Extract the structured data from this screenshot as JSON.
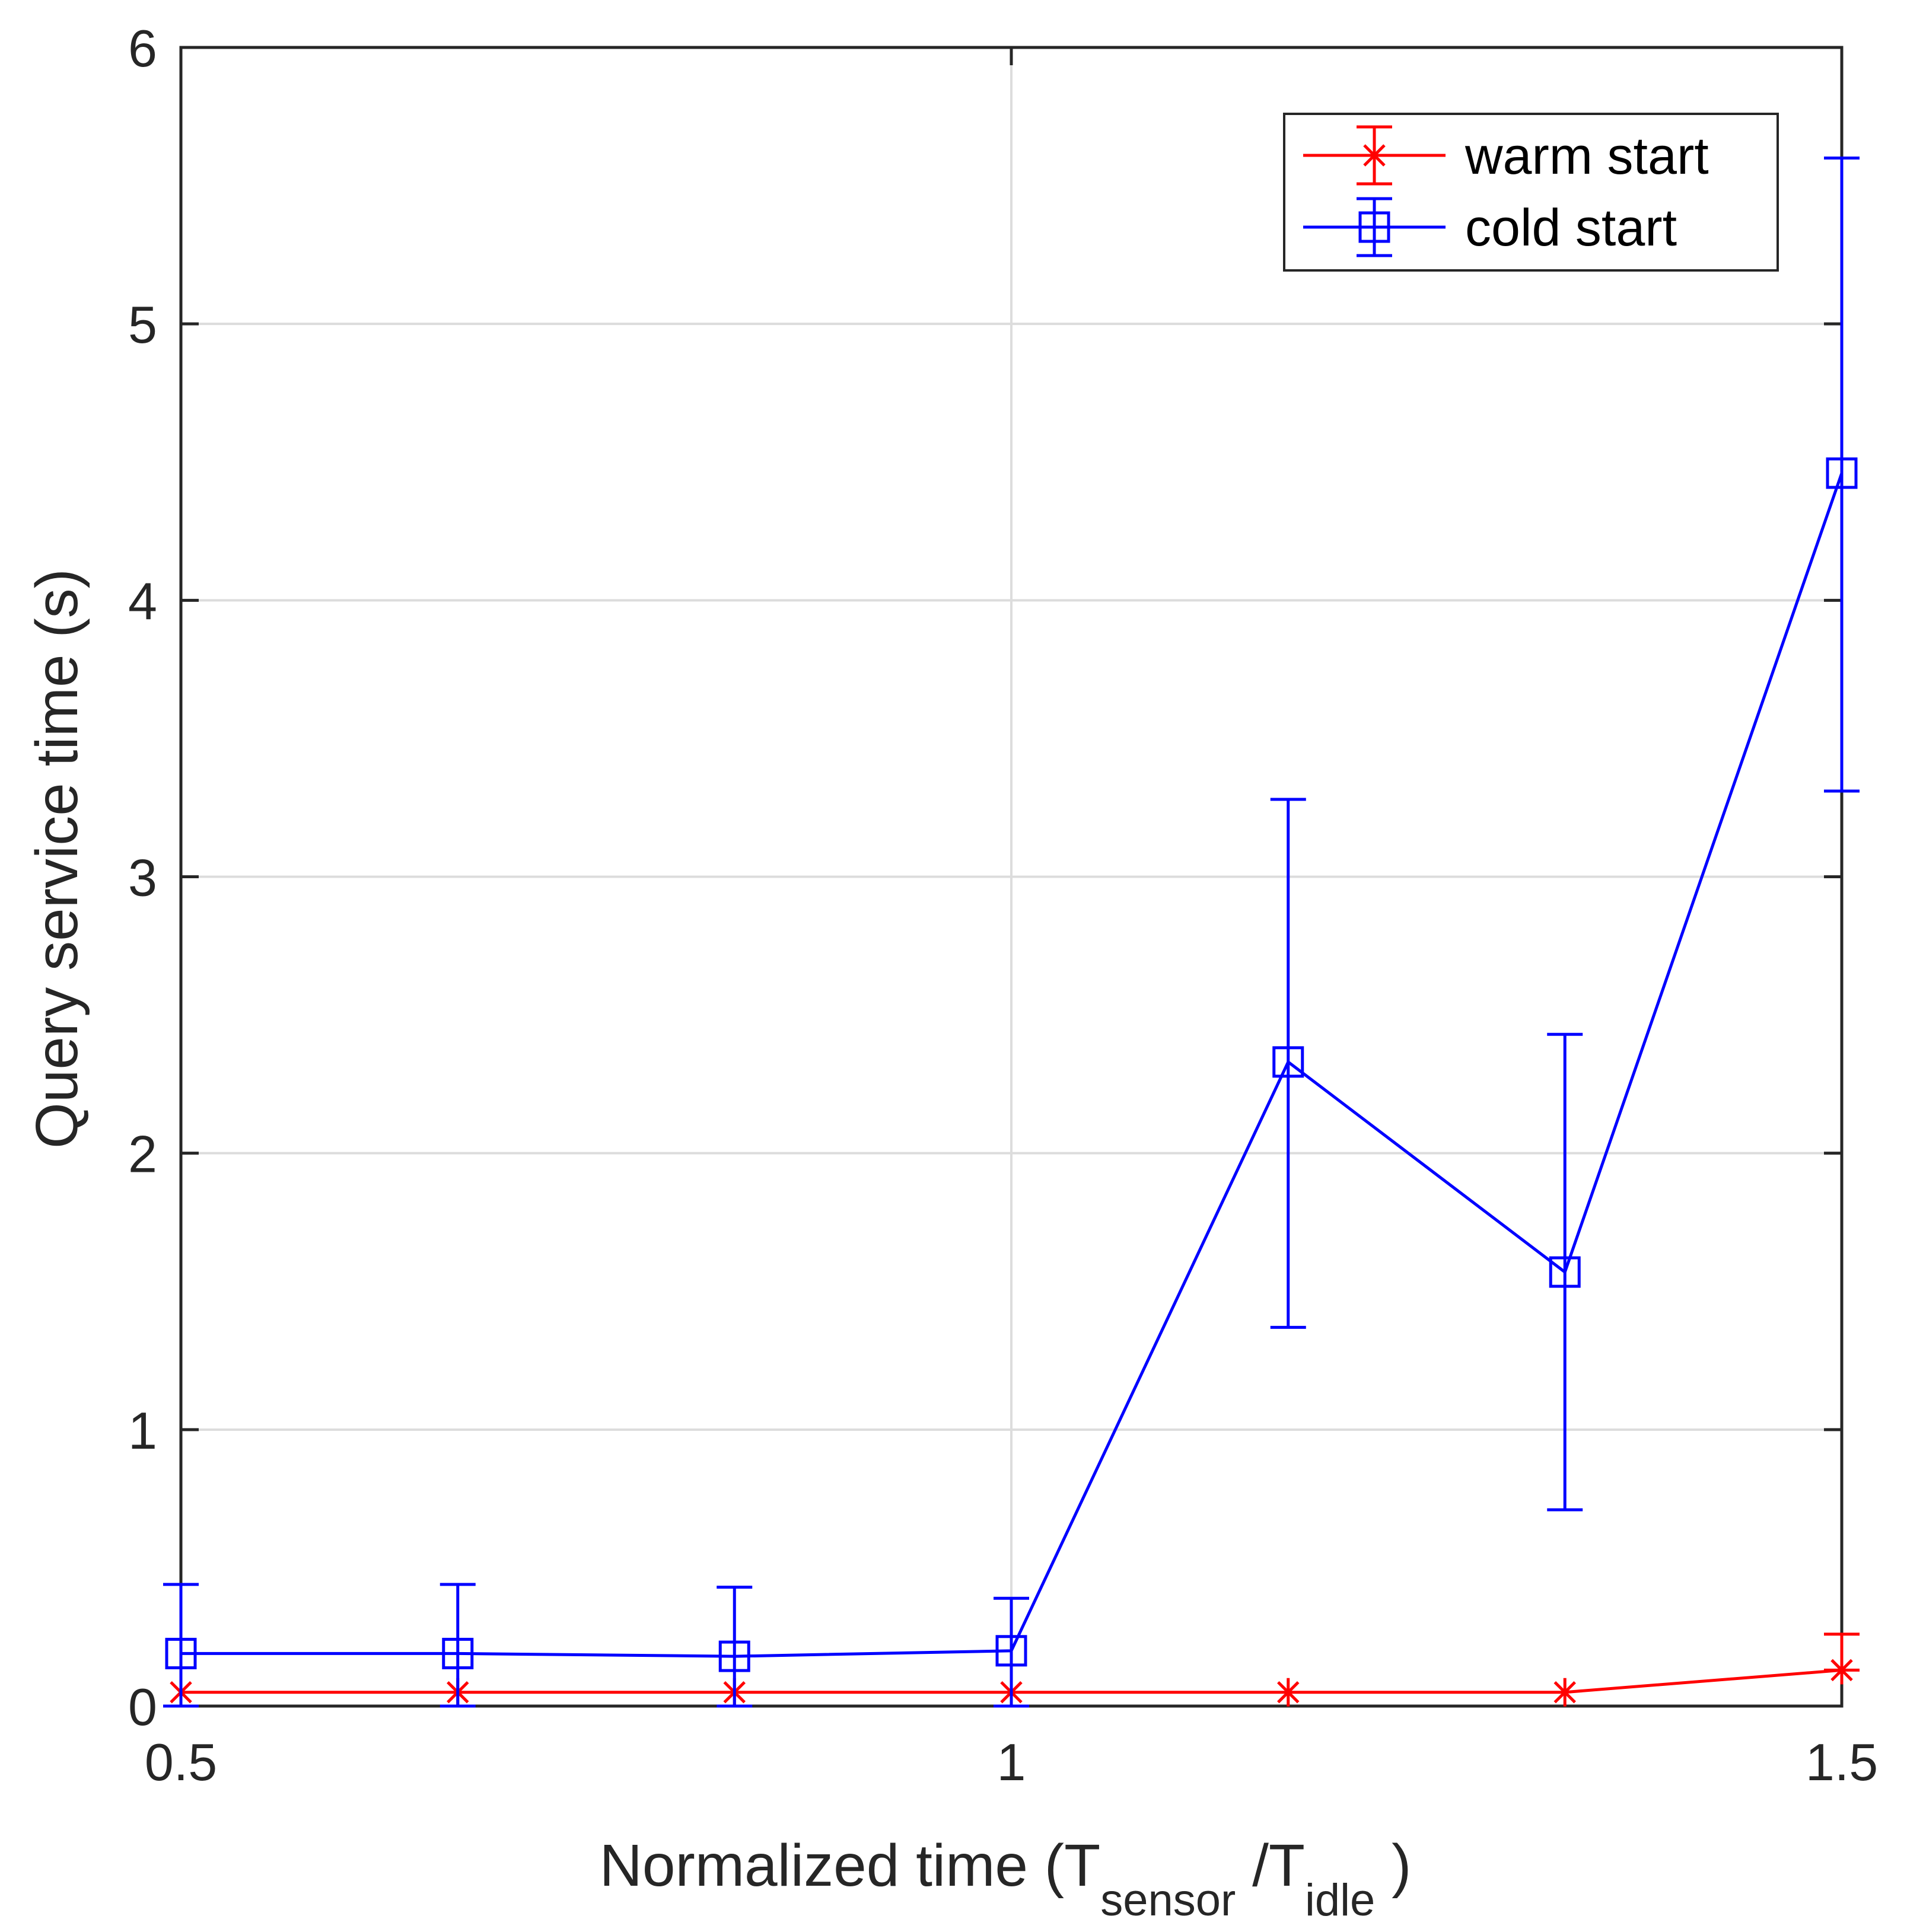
{
  "chart_data": {
    "type": "line",
    "title": "",
    "xlabel": {
      "prefix": "Normalized time (T",
      "sub1": "sensor",
      "mid": " /T",
      "sub2": "idle",
      "suffix": " )"
    },
    "ylabel": "Query service time (s)",
    "xlim": [
      0.5,
      1.5
    ],
    "ylim": [
      0,
      6
    ],
    "xticks": [
      0.5,
      1,
      1.5
    ],
    "xtick_labels": [
      "0.5",
      "1",
      "1.5"
    ],
    "yticks": [
      0,
      1,
      2,
      3,
      4,
      5,
      6
    ],
    "ytick_labels": [
      "0",
      "1",
      "2",
      "3",
      "4",
      "5",
      "6"
    ],
    "grid": true,
    "legend_position": "top-right",
    "x": [
      0.5,
      0.6667,
      0.8333,
      1.0,
      1.1667,
      1.3333,
      1.5
    ],
    "series": [
      {
        "name": "warm start",
        "color": "#ff0000",
        "marker": "asterisk",
        "values": [
          0.05,
          0.05,
          0.05,
          0.05,
          0.05,
          0.05,
          0.13
        ],
        "err_low": [
          0.05,
          0.05,
          0.05,
          0.05,
          0.05,
          0.05,
          0.13
        ],
        "err_high": [
          0.05,
          0.05,
          0.05,
          0.05,
          0.05,
          0.05,
          0.26
        ]
      },
      {
        "name": "cold start",
        "color": "#0000ff",
        "marker": "square",
        "values": [
          0.19,
          0.19,
          0.18,
          0.2,
          2.33,
          1.57,
          4.46
        ],
        "err_low": [
          0.0,
          0.0,
          0.0,
          0.0,
          1.37,
          0.71,
          3.31
        ],
        "err_high": [
          0.44,
          0.44,
          0.43,
          0.39,
          3.28,
          2.43,
          5.6
        ]
      }
    ]
  }
}
